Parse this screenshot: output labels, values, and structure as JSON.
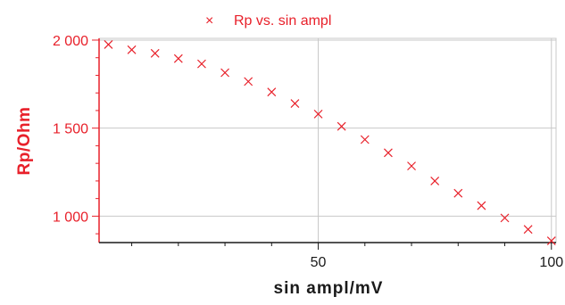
{
  "chart_data": {
    "type": "scatter",
    "xlabel": "sin ampl/mV",
    "ylabel": "Rp/Ohm",
    "xlim": [
      3,
      101
    ],
    "ylim": [
      850,
      2010
    ],
    "x_ticks": [
      50,
      100
    ],
    "x_tick_labels": [
      "50",
      "100"
    ],
    "y_ticks": [
      1000,
      1500,
      2000
    ],
    "y_tick_labels": [
      "1 000",
      "1 500",
      "2 000"
    ],
    "grid": true,
    "legend_position": "top-center",
    "marker": "x",
    "colors": {
      "series": "#e8202a",
      "y_axis": "#e8202a",
      "x_axis": "#1a1a1a",
      "grid": "#c8c8c8"
    },
    "series": [
      {
        "name": "Rp vs. sin ampl",
        "x": [
          5,
          10,
          15,
          20,
          25,
          30,
          35,
          40,
          45,
          50,
          55,
          60,
          65,
          70,
          75,
          80,
          85,
          90,
          95,
          100
        ],
        "y": [
          1975,
          1945,
          1925,
          1895,
          1865,
          1815,
          1765,
          1705,
          1640,
          1580,
          1510,
          1435,
          1360,
          1285,
          1200,
          1130,
          1060,
          990,
          925,
          860
        ]
      }
    ]
  }
}
